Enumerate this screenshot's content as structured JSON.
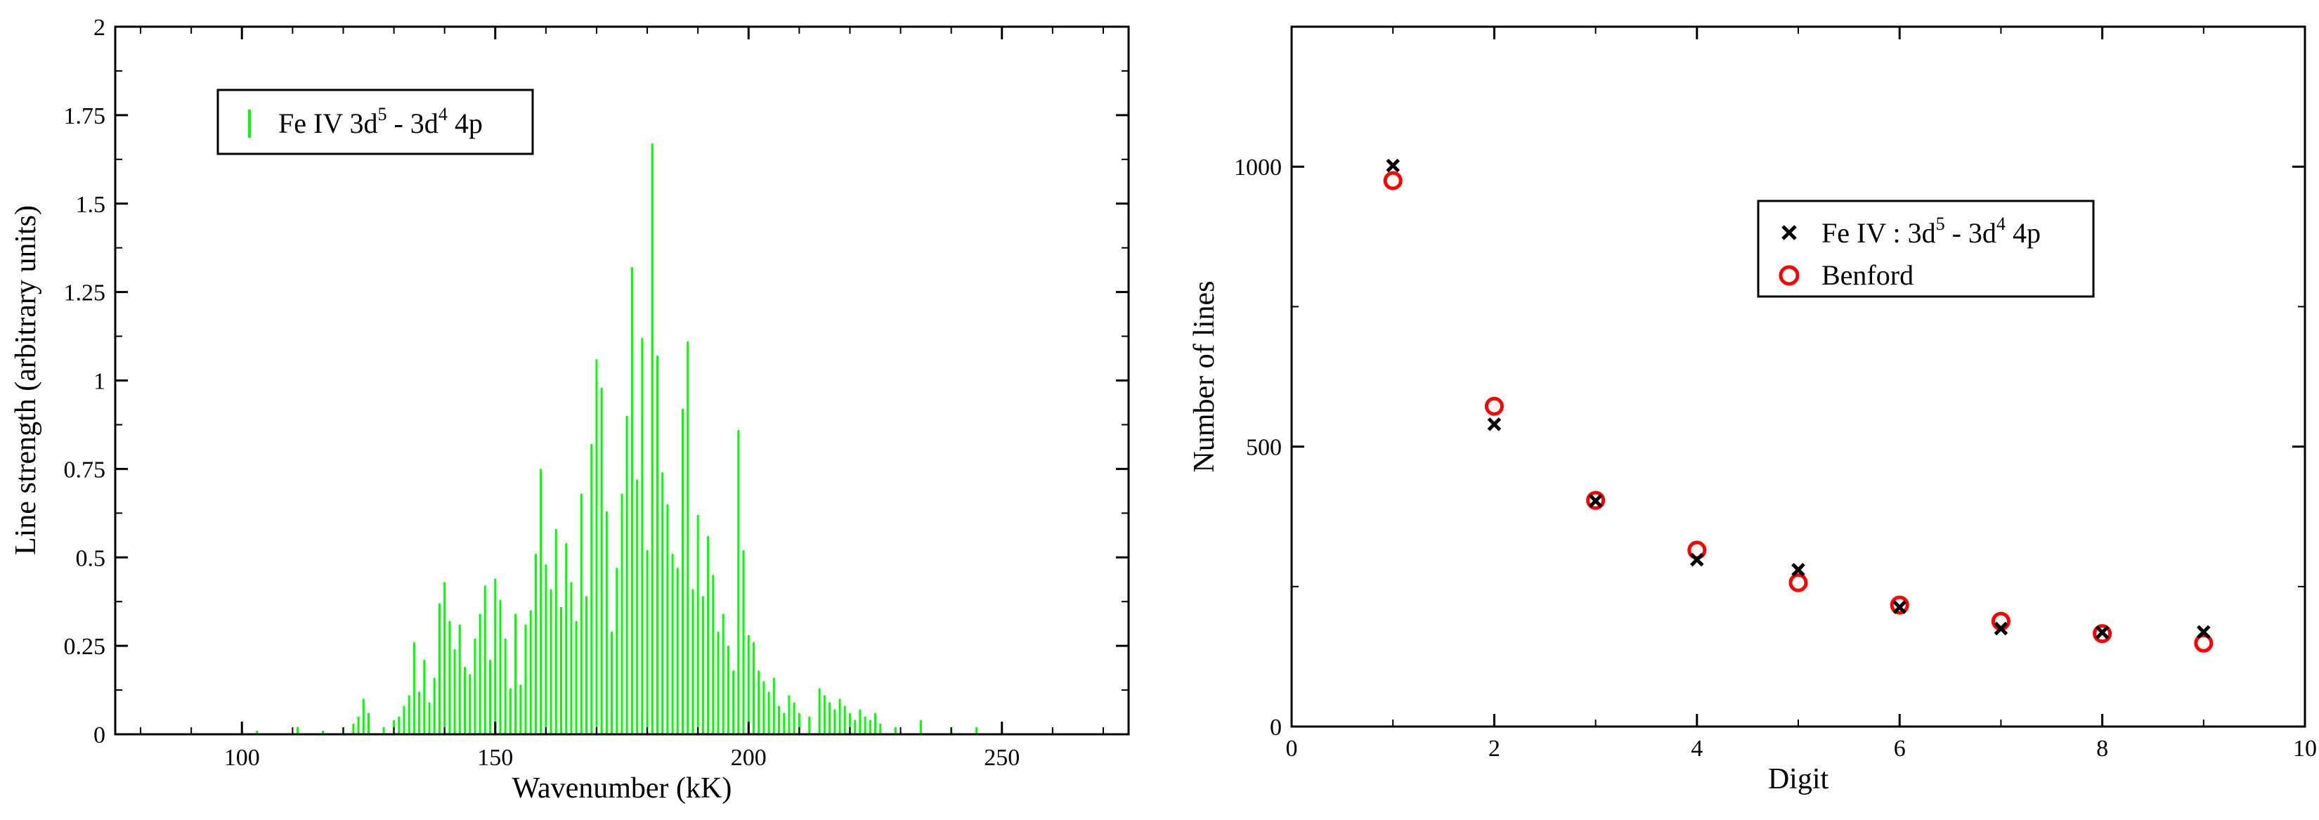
{
  "colors": {
    "spectrum": "#00ff00",
    "fe_marker": "#000000",
    "benford_marker": "#ff0000",
    "axes": "#000000",
    "background": "#ffffff"
  },
  "chart_data": [
    {
      "type": "bar",
      "chart_id": "spectrum",
      "xlabel": "Wavenumber (kK)",
      "ylabel": "Line strength (arbitrary units)",
      "xlim": [
        75,
        275
      ],
      "ylim": [
        0,
        2
      ],
      "x_ticks": [
        100,
        150,
        200,
        250
      ],
      "x_tick_labels": [
        "100",
        "150",
        "200",
        "250"
      ],
      "y_ticks": [
        0,
        0.25,
        0.5,
        0.75,
        1,
        1.25,
        1.5,
        1.75,
        2
      ],
      "y_tick_labels": [
        "0",
        "0.25",
        "0.5",
        "0.75",
        "1",
        "1.25",
        "1.5",
        "1.75",
        "2"
      ],
      "grid": false,
      "legend": {
        "position": "top-left",
        "base": "Fe IV 3d",
        "sup1": "5",
        "mid": " - 3d",
        "sup2": "4",
        "end": " 4p"
      },
      "series": [
        {
          "name": "Fe IV 3d5 - 3d4 4p",
          "color": "#00ff00",
          "x": [
            103,
            111,
            116,
            120,
            122,
            123,
            124,
            125,
            128,
            130,
            131,
            132,
            133,
            134,
            135,
            136,
            137,
            138,
            139,
            140,
            141,
            142,
            143,
            144,
            145,
            146,
            147,
            148,
            149,
            150,
            151,
            152,
            153,
            154,
            155,
            156,
            157,
            158,
            159,
            160,
            161,
            162,
            163,
            164,
            165,
            166,
            167,
            168,
            169,
            170,
            171,
            172,
            173,
            174,
            175,
            176,
            177,
            178,
            179,
            180,
            181,
            182,
            183,
            184,
            185,
            186,
            187,
            188,
            189,
            190,
            191,
            192,
            193,
            194,
            195,
            196,
            197,
            198,
            199,
            200,
            201,
            202,
            203,
            204,
            205,
            206,
            207,
            208,
            209,
            210,
            212,
            214,
            215,
            216,
            217,
            218,
            219,
            220,
            221,
            222,
            223,
            224,
            225,
            226,
            229,
            234,
            240,
            245
          ],
          "values": [
            0.01,
            0.02,
            0.01,
            0.02,
            0.03,
            0.05,
            0.1,
            0.06,
            0.02,
            0.04,
            0.05,
            0.08,
            0.11,
            0.26,
            0.12,
            0.21,
            0.09,
            0.16,
            0.37,
            0.43,
            0.32,
            0.24,
            0.31,
            0.19,
            0.17,
            0.27,
            0.34,
            0.42,
            0.21,
            0.44,
            0.38,
            0.27,
            0.13,
            0.34,
            0.14,
            0.31,
            0.35,
            0.51,
            0.75,
            0.48,
            0.41,
            0.58,
            0.36,
            0.54,
            0.43,
            0.32,
            0.68,
            0.39,
            0.82,
            1.06,
            0.98,
            0.63,
            0.29,
            0.47,
            0.68,
            0.9,
            1.32,
            0.72,
            1.12,
            0.52,
            1.67,
            1.07,
            0.74,
            0.65,
            0.51,
            0.47,
            0.92,
            1.11,
            0.41,
            0.62,
            0.39,
            0.56,
            0.45,
            0.29,
            0.34,
            0.25,
            0.18,
            0.86,
            0.52,
            0.28,
            0.26,
            0.18,
            0.15,
            0.12,
            0.16,
            0.08,
            0.06,
            0.11,
            0.09,
            0.06,
            0.05,
            0.13,
            0.11,
            0.09,
            0.07,
            0.1,
            0.08,
            0.06,
            0.04,
            0.07,
            0.05,
            0.04,
            0.06,
            0.03,
            0.02,
            0.04,
            0.02,
            0.02
          ]
        }
      ]
    },
    {
      "type": "scatter",
      "chart_id": "benford",
      "xlabel": "Digit",
      "ylabel": "Number of lines",
      "xlim": [
        0,
        10
      ],
      "ylim": [
        0,
        1250
      ],
      "x_ticks": [
        0,
        2,
        4,
        6,
        8,
        10
      ],
      "x_tick_labels": [
        "0",
        "2",
        "4",
        "6",
        "8",
        "10"
      ],
      "y_ticks": [
        0,
        500,
        1000
      ],
      "y_tick_labels": [
        "0",
        "500",
        "1000"
      ],
      "grid": false,
      "legend": {
        "position": "top-right",
        "entries": [
          {
            "base": "Fe IV : 3d",
            "sup1": "5",
            "mid": " - 3d",
            "sup2": "4",
            "end": " 4p",
            "marker": "x"
          },
          {
            "base": "Benford",
            "marker": "circle"
          }
        ]
      },
      "series": [
        {
          "name": "Fe IV : 3d5 - 3d4 4p",
          "marker": "x",
          "color": "#000000",
          "x": [
            1,
            2,
            3,
            4,
            5,
            6,
            7,
            8,
            9
          ],
          "values": [
            1002,
            540,
            403,
            298,
            280,
            213,
            175,
            168,
            169
          ]
        },
        {
          "name": "Benford",
          "marker": "circle",
          "color": "#ff0000",
          "x": [
            1,
            2,
            3,
            4,
            5,
            6,
            7,
            8,
            9
          ],
          "values": [
            975,
            572,
            404,
            315,
            257,
            217,
            188,
            166,
            149
          ]
        }
      ]
    }
  ]
}
